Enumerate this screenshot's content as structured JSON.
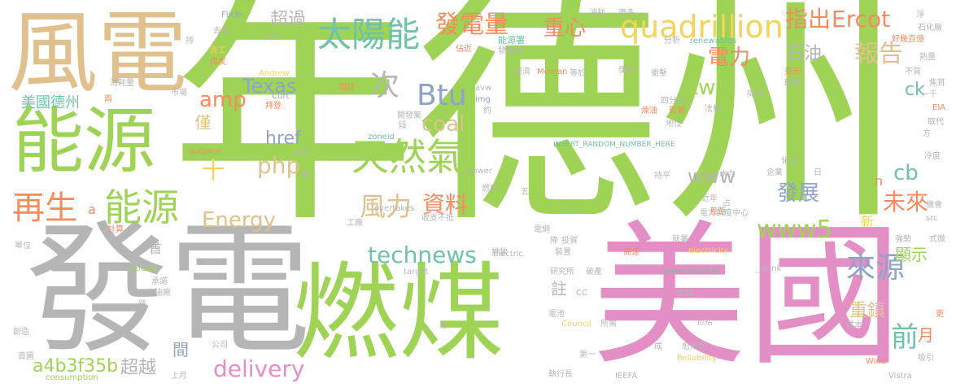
{
  "colors": {
    "green": "#9fd356",
    "pink": "#e38fc5",
    "grey": "#b5b5b5",
    "tan": "#e0c08c",
    "teal": "#6fc2a8",
    "orange": "#f58b5f",
    "blue": "#8fa3c9",
    "yellow": "#f3d35a"
  },
  "words": {
    "nian_de_zhou": "年德州",
    "mei_guo": "美國",
    "fa_dian": "發電",
    "ran_mei": "燃煤",
    "feng_dian": "風電",
    "neng_yuan_big": "能源",
    "neng_yuan_mid": "能源",
    "zai_sheng": "再生",
    "tai_yang_neng": "太陽能",
    "fa_dian_liang": "發電量",
    "quadrillion": "quadrillion",
    "tian_ran_qi": "天然氣",
    "btu": "Btu",
    "coal": "coal",
    "amp": "amp",
    "texas": "Texas",
    "php": "php",
    "energy": "Energy",
    "delivery": "delivery",
    "technews": "technews",
    "www5": "www5",
    "www": "www",
    "href": "href",
    "a4b3f35b": "a4b3f35b",
    "feng_li": "風力",
    "zi_liao": "資料",
    "lai_yuan": "來源",
    "bao_gao": "報告",
    "ercot": "Ercot",
    "zhi_chu": "指出",
    "zhong_xin": "重心",
    "dian_li": "電力",
    "chao_guo": "超過",
    "ci": "次",
    "fa_zhan": "發展",
    "wei_lai": "未來",
    "qian": "前",
    "cb": "cb",
    "tw": "tw",
    "ck": "ck",
    "shi_you": "石油",
    "yue": "月",
    "zhong_zhen": "重鎮",
    "xian_shi": "顯示",
    "chao_yue": "超越",
    "jian": "間",
    "zhu": "註",
    "shi": "十",
    "jin": "僅",
    "mei_guo_de_zhou": "美國德州",
    "shou": "首",
    "xin": "新",
    "n": "n",
    "a": "a",
    "flickr": "Flickr",
    "qu_nian": "去年",
    "ren_kou": "人口",
    "neng_yuan_shu": "能源署",
    "wan_gong": "完工",
    "mei_chan": "煤炭",
    "chi": "持",
    "andrew": "Andrew",
    "xiao_hao_liang": "消耗量",
    "liang": "兩",
    "shi_chang": "市場",
    "curt": "Curt",
    "bai_deng": "拜登",
    "xian_zhuang": "現狀",
    "zhan_jin": "佔近",
    "fa_dian_chang": "發電場",
    "jing_ji": "經濟",
    "morgan": "Morgan",
    "deng_yu": "等於",
    "bian_yi": "便宜",
    "chong_ji": "衝擊",
    "jiang_dao": "降到",
    "avw": "avw",
    "img": "img",
    "yue_yue": "約",
    "xiao_hao": "消耗",
    "geng_duo": "更多",
    "fen_xi": "分析",
    "renewables": "renewables",
    "mei_yuan": "美元",
    "huan_jing": "環境",
    "bu_xiang": "不貲",
    "fa_gui": "法規",
    "si_fen": "四分之一",
    "ying_xiang": "影響",
    "lian_you": "煉油",
    "di_wei": "地位",
    "hua_gu": "化石",
    "shui_li": "水力",
    "qi_ye": "企業",
    "jin_nian": "近年",
    "insert": "INSERT_RANDOM_NUMBER_HERE",
    "zhi_ming": "知名",
    "bian": "便",
    "kai_fa_shi": "開發案",
    "duan": "段",
    "outpace": "outpace",
    "zoneid": "zoneid",
    "power": "power",
    "ran_liao": "燃料",
    "wu": "五",
    "chi_ping": "持平",
    "zhan": "占",
    "cha_ju": "差距",
    "dian_li_diao_du": "電力調度中心",
    "overtakes": "overtakes",
    "gong_chang": "工廠",
    "shou_zhi_bu_di": "收支不抵",
    "ji_suan": "計算",
    "dian_wang": "電網",
    "jiang": "降",
    "tou_zi": "投資",
    "jiu_ye": "就業",
    "electricity": "electricity",
    "qiang_shi": "強勢",
    "dan_wei": "單位",
    "lin_li": "林立",
    "pai_fang": "排放",
    "zhuang_li": "裝置",
    "gao_su": "高速",
    "electric": "Electric",
    "poised": "poised",
    "cheng_nuo": "承諾",
    "target": "target",
    "yan_jiu_suo": "研究所",
    "po_chan": "破產",
    "generationus": "generationUS",
    "blank": "_blank'",
    "lian_you_chang": "煉油廠",
    "lu": "路",
    "cc": "CC",
    "jin_rong": "金融",
    "dian_chi": "電池",
    "gong_si": "公司",
    "luo": "落",
    "council": "Council",
    "suo_xu": "所需",
    "bao_kuo": "包括",
    "cheng": "成",
    "yu_lai_yu": "愈來愈",
    "reliability": "Reliability",
    "cheng_ben": "成本",
    "chuang_zao": "創造",
    "shou_tu": "首圖",
    "di_yi": "第一",
    "zhi_xing_zhang": "執行長",
    "shang_yue": "上月",
    "consumption": "consumption",
    "ieefa": "IEEFA",
    "wind": "Wind",
    "xi_yin": "吸引",
    "vistra": "Vistra",
    "jing": "淨",
    "shi_hua_chang": "石化廠",
    "hao_ji_bai": "好幾百億",
    "re_liang": "熱量",
    "yi_qian": "一千",
    "eia": "EIA",
    "jiao_er": "焦耳",
    "qu_dai": "取代",
    "fang": "方",
    "leng_du": "冷度",
    "ji_hui": "機會",
    "src": "src",
    "shi_de": "式微",
    "yue_small": "更",
    "ri": "日"
  }
}
